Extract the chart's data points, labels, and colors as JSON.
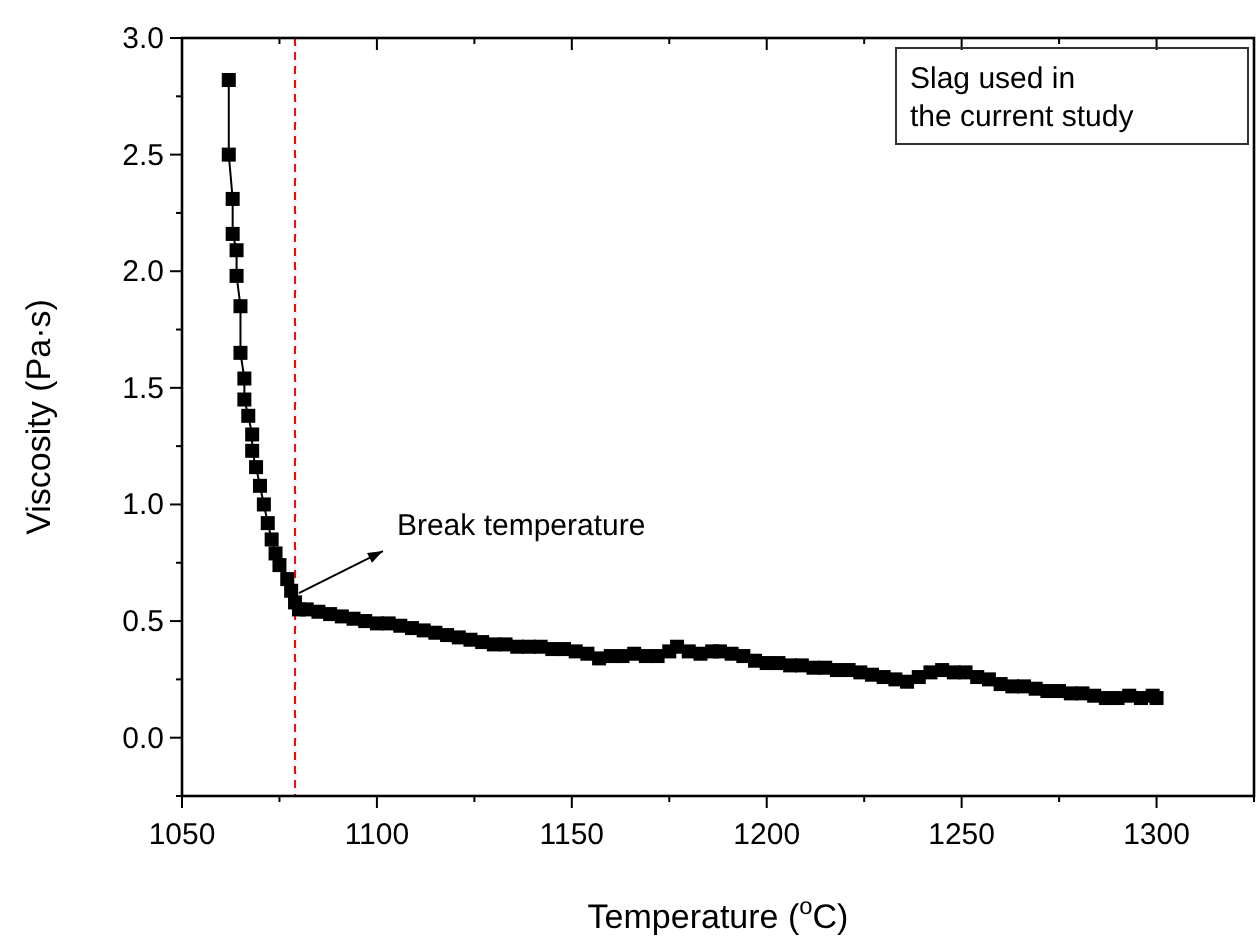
{
  "chart_data": {
    "type": "line",
    "xlabel": "Temperature ($^{o}$C)",
    "ylabel": "Viscosity (Pa·s)",
    "xlim": [
      1050,
      1325
    ],
    "ylim": [
      -0.25,
      3.0
    ],
    "xticks": [
      1050,
      {
        "value": 1075,
        "label": null
      },
      1100,
      {
        "value": 1125,
        "label": null
      },
      1150,
      {
        "value": 1175,
        "label": null
      },
      1200,
      {
        "value": 1225,
        "label": null
      },
      1250,
      {
        "value": 1275,
        "label": null
      },
      1300,
      {
        "value": 1325,
        "label": null
      }
    ],
    "yticks": [
      {
        "value": -0.25,
        "label": null
      },
      {
        "value": 0,
        "label": "0.0"
      },
      {
        "value": 0.25,
        "label": null
      },
      {
        "value": 0.5,
        "label": "0.5"
      },
      {
        "value": 0.75,
        "label": null
      },
      {
        "value": 1,
        "label": "1.0"
      },
      {
        "value": 1.25,
        "label": null
      },
      {
        "value": 1.5,
        "label": "1.5"
      },
      {
        "value": 1.75,
        "label": null
      },
      {
        "value": 2,
        "label": "2.0"
      },
      {
        "value": 2.25,
        "label": null
      },
      {
        "value": 2.5,
        "label": "2.5"
      },
      {
        "value": 2.75,
        "label": null
      },
      {
        "value": 3,
        "label": "3.0"
      }
    ],
    "marker": "square",
    "line_style": "solid",
    "series": [
      {
        "color": "#000000",
        "x": [
          1062,
          1062,
          1063,
          1063,
          1064,
          1064,
          1065,
          1065,
          1066,
          1066,
          1067,
          1068,
          1068,
          1069,
          1070,
          1071,
          1072,
          1073,
          1074,
          1075,
          1077,
          1078,
          1079,
          1080,
          1082,
          1085,
          1088,
          1091,
          1094,
          1097,
          1100,
          1103,
          1106,
          1109,
          1112,
          1115,
          1118,
          1121,
          1124,
          1127,
          1130,
          1133,
          1136,
          1139,
          1142,
          1145,
          1148,
          1151,
          1154,
          1157,
          1160,
          1163,
          1166,
          1169,
          1172,
          1175,
          1177,
          1180,
          1183,
          1186,
          1188,
          1191,
          1194,
          1197,
          1200,
          1203,
          1206,
          1209,
          1212,
          1215,
          1218,
          1221,
          1224,
          1227,
          1230,
          1233,
          1236,
          1239,
          1242,
          1245,
          1248,
          1251,
          1254,
          1257,
          1260,
          1263,
          1266,
          1269,
          1272,
          1275,
          1278,
          1281,
          1284,
          1287,
          1290,
          1293,
          1296,
          1299,
          1300
        ],
        "values": [
          2.82,
          2.5,
          2.31,
          2.16,
          2.09,
          1.98,
          1.85,
          1.65,
          1.54,
          1.45,
          1.38,
          1.3,
          1.23,
          1.16,
          1.08,
          1.0,
          0.92,
          0.85,
          0.79,
          0.74,
          0.68,
          0.63,
          0.58,
          0.55,
          0.55,
          0.54,
          0.53,
          0.52,
          0.51,
          0.5,
          0.49,
          0.49,
          0.48,
          0.47,
          0.46,
          0.45,
          0.44,
          0.43,
          0.42,
          0.41,
          0.4,
          0.4,
          0.39,
          0.39,
          0.39,
          0.38,
          0.38,
          0.37,
          0.36,
          0.34,
          0.35,
          0.35,
          0.36,
          0.35,
          0.35,
          0.37,
          0.39,
          0.37,
          0.36,
          0.37,
          0.37,
          0.36,
          0.35,
          0.33,
          0.32,
          0.32,
          0.31,
          0.31,
          0.3,
          0.3,
          0.29,
          0.29,
          0.28,
          0.27,
          0.26,
          0.25,
          0.24,
          0.26,
          0.28,
          0.29,
          0.28,
          0.28,
          0.26,
          0.25,
          0.23,
          0.22,
          0.22,
          0.21,
          0.2,
          0.2,
          0.19,
          0.19,
          0.18,
          0.17,
          0.17,
          0.18,
          0.17,
          0.18,
          0.17
        ]
      }
    ],
    "ref_lines": [
      {
        "axis": "x",
        "value": 1079,
        "color": "#ff0000",
        "line_style": "dashed"
      }
    ],
    "annotations": [
      {
        "text": "Break temperature",
        "x": 1080,
        "y": 0.62
      },
      "Slag used in\nthe current study"
    ]
  }
}
